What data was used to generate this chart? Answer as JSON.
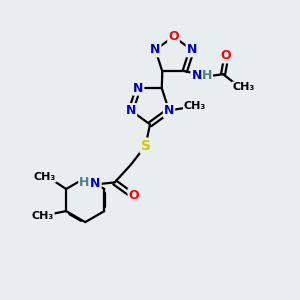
{
  "background_color": "#e8edf0",
  "atom_colors": {
    "N": "#0000cc",
    "O": "#ff0000",
    "S": "#cccc00",
    "C": "#000000",
    "H": "#508080"
  },
  "bond_color": "#000000",
  "bond_width": 1.6,
  "figsize": [
    3.0,
    3.0
  ],
  "dpi": 100,
  "xlim": [
    0,
    10
  ],
  "ylim": [
    0,
    10
  ]
}
